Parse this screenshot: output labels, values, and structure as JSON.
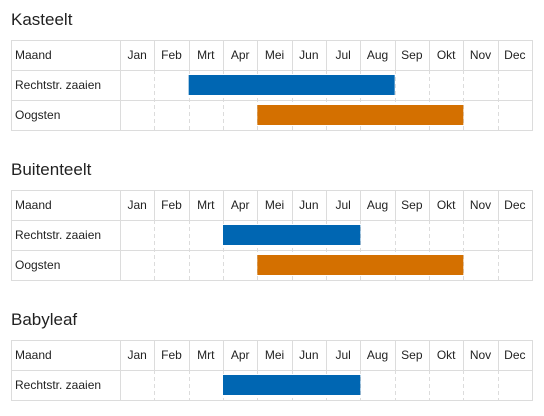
{
  "months": [
    "Jan",
    "Feb",
    "Mrt",
    "Apr",
    "Mei",
    "Jun",
    "Jul",
    "Aug",
    "Sep",
    "Okt",
    "Nov",
    "Dec"
  ],
  "header_label": "Maand",
  "colors": {
    "sow": "#0066b2",
    "harvest": "#d47000"
  },
  "chart_data": [
    {
      "type": "bar",
      "title": "Kasteelt",
      "rows": [
        {
          "label": "Rechtstr. zaaien",
          "kind": "sow",
          "start": 2,
          "end": 8
        },
        {
          "label": "Oogsten",
          "kind": "harvest",
          "start": 4,
          "end": 10
        }
      ]
    },
    {
      "type": "bar",
      "title": "Buitenteelt",
      "rows": [
        {
          "label": "Rechtstr. zaaien",
          "kind": "sow",
          "start": 3,
          "end": 7
        },
        {
          "label": "Oogsten",
          "kind": "harvest",
          "start": 4,
          "end": 10
        }
      ]
    },
    {
      "type": "bar",
      "title": "Babyleaf",
      "rows": [
        {
          "label": "Rechtstr. zaaien",
          "kind": "sow",
          "start": 3,
          "end": 7
        }
      ]
    }
  ]
}
